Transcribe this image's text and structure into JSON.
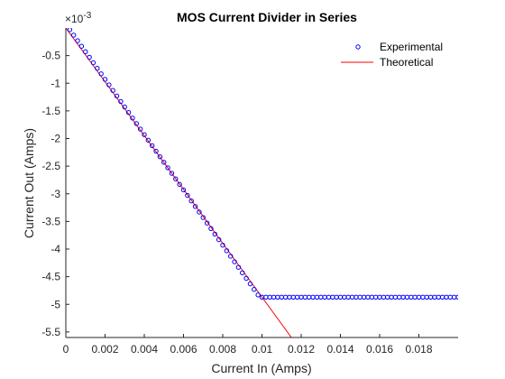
{
  "chart_data": {
    "type": "scatter",
    "title": "MOS Current Divider in Series",
    "xlabel": "Current In (Amps)",
    "ylabel": "Current Out (Amps)",
    "y_exponent_label": "×10",
    "y_exponent_power": "-3",
    "y_scale": 0.001,
    "xlim": [
      0,
      0.02
    ],
    "ylim": [
      -5.6,
      0
    ],
    "x_ticks": [
      0,
      0.002,
      0.004,
      0.006,
      0.008,
      0.01,
      0.012,
      0.014,
      0.016,
      0.018
    ],
    "x_tick_labels": [
      "0",
      "0.002",
      "0.004",
      "0.006",
      "0.008",
      "0.01",
      "0.012",
      "0.014",
      "0.016",
      "0.018"
    ],
    "y_ticks": [
      -0.5,
      -1,
      -1.5,
      -2,
      -2.5,
      -3,
      -3.5,
      -4,
      -4.5,
      -5,
      -5.5
    ],
    "y_tick_labels": [
      "-0.5",
      "-1",
      "-1.5",
      "-2",
      "-2.5",
      "-3",
      "-3.5",
      "-4",
      "-4.5",
      "-5",
      "-5.5"
    ],
    "grid": false,
    "legend_position": "top-right",
    "series": [
      {
        "name": "Experimental",
        "style": "markers",
        "marker": "circle",
        "color": "#0000ff",
        "x": [
          0.0002,
          0.0004,
          0.0006,
          0.0008,
          0.001,
          0.0012,
          0.0014,
          0.0016,
          0.0018,
          0.002,
          0.0022,
          0.0024,
          0.0026,
          0.0028,
          0.003,
          0.0032,
          0.0034,
          0.0036,
          0.0038,
          0.004,
          0.0042,
          0.0044,
          0.0046,
          0.0048,
          0.005,
          0.0052,
          0.0054,
          0.0056,
          0.0058,
          0.006,
          0.0062,
          0.0064,
          0.0066,
          0.0068,
          0.007,
          0.0072,
          0.0074,
          0.0076,
          0.0078,
          0.008,
          0.0082,
          0.0084,
          0.0086,
          0.0088,
          0.009,
          0.0092,
          0.0094,
          0.0096,
          0.0098,
          0.01,
          0.0102,
          0.0104,
          0.0106,
          0.0108,
          0.011,
          0.0112,
          0.0114,
          0.0116,
          0.0118,
          0.012,
          0.0122,
          0.0124,
          0.0126,
          0.0128,
          0.013,
          0.0132,
          0.0134,
          0.0136,
          0.0138,
          0.014,
          0.0142,
          0.0144,
          0.0146,
          0.0148,
          0.015,
          0.0152,
          0.0154,
          0.0156,
          0.0158,
          0.016,
          0.0162,
          0.0164,
          0.0166,
          0.0168,
          0.017,
          0.0172,
          0.0174,
          0.0176,
          0.0178,
          0.018,
          0.0182,
          0.0184,
          0.0186,
          0.0188,
          0.019,
          0.0192,
          0.0194,
          0.0196,
          0.0198,
          0.02
        ],
        "y": [
          -0.03,
          -0.13,
          -0.23,
          -0.33,
          -0.43,
          -0.53,
          -0.63,
          -0.73,
          -0.83,
          -0.93,
          -1.03,
          -1.13,
          -1.23,
          -1.33,
          -1.43,
          -1.53,
          -1.63,
          -1.73,
          -1.83,
          -1.93,
          -2.03,
          -2.13,
          -2.23,
          -2.33,
          -2.43,
          -2.53,
          -2.63,
          -2.73,
          -2.83,
          -2.93,
          -3.03,
          -3.13,
          -3.23,
          -3.33,
          -3.43,
          -3.53,
          -3.63,
          -3.73,
          -3.83,
          -3.93,
          -4.03,
          -4.13,
          -4.23,
          -4.33,
          -4.43,
          -4.53,
          -4.63,
          -4.73,
          -4.83,
          -4.87,
          -4.87,
          -4.87,
          -4.87,
          -4.87,
          -4.87,
          -4.87,
          -4.87,
          -4.87,
          -4.87,
          -4.87,
          -4.87,
          -4.87,
          -4.87,
          -4.87,
          -4.87,
          -4.87,
          -4.87,
          -4.87,
          -4.87,
          -4.87,
          -4.87,
          -4.87,
          -4.87,
          -4.87,
          -4.87,
          -4.87,
          -4.87,
          -4.87,
          -4.87,
          -4.87,
          -4.87,
          -4.87,
          -4.87,
          -4.87,
          -4.87,
          -4.87,
          -4.87,
          -4.87,
          -4.87,
          -4.87,
          -4.87,
          -4.87,
          -4.87,
          -4.87,
          -4.87,
          -4.87,
          -4.87,
          -4.87,
          -4.87,
          -4.87
        ]
      },
      {
        "name": "Theoretical",
        "style": "line",
        "color": "#ff0000",
        "x": [
          0,
          0.0115
        ],
        "y": [
          0,
          -5.6
        ]
      }
    ]
  }
}
